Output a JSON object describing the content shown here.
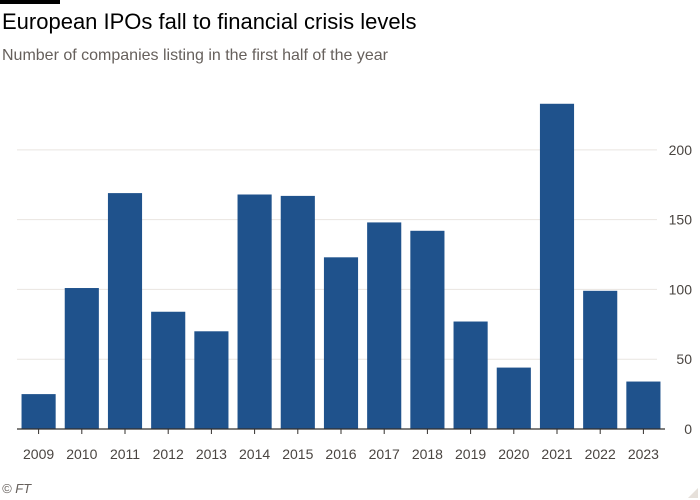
{
  "header": {
    "title": "European IPOs fall to financial crisis levels",
    "subtitle": "Number of companies listing in the first half of the year"
  },
  "footer": {
    "source": "© FT"
  },
  "colors": {
    "bar": "#1f528c",
    "grid": "#e9e5e1",
    "axis": "#33302e",
    "tick_text": "#4a4541"
  },
  "chart_data": {
    "type": "bar",
    "categories": [
      "2009",
      "2010",
      "2011",
      "2012",
      "2013",
      "2014",
      "2015",
      "2016",
      "2017",
      "2018",
      "2019",
      "2020",
      "2021",
      "2022",
      "2023"
    ],
    "values": [
      25,
      101,
      169,
      84,
      70,
      168,
      167,
      123,
      148,
      142,
      77,
      44,
      233,
      99,
      34
    ],
    "title": "European IPOs fall to financial crisis levels",
    "subtitle": "Number of companies listing in the first half of the year",
    "xlabel": "",
    "ylabel": "",
    "ylim": [
      0,
      240
    ],
    "yticks": [
      0,
      50,
      100,
      150,
      200
    ],
    "y_axis_side": "right",
    "grid": true,
    "legend": "none"
  }
}
